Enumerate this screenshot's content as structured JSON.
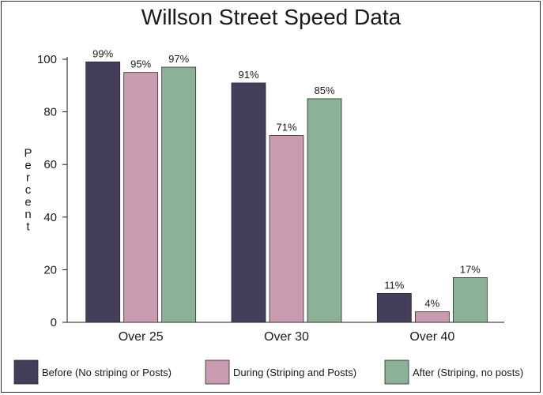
{
  "chart_data": {
    "type": "bar",
    "title": "Willson Street Speed Data",
    "ylabel": "Percent",
    "xlabel": "",
    "ylim": [
      0,
      100
    ],
    "yticks": [
      0,
      20,
      40,
      60,
      80,
      100
    ],
    "categories": [
      "Over 25",
      "Over 30",
      "Over 40"
    ],
    "series": [
      {
        "name": "Before (No striping or Posts)",
        "values": [
          99,
          91,
          11
        ],
        "labels": [
          "99%",
          "91%",
          "11%"
        ],
        "color": "#453e5a"
      },
      {
        "name": "During (Striping and Posts)",
        "values": [
          95,
          71,
          4
        ],
        "labels": [
          "95%",
          "71%",
          "4%"
        ],
        "color": "#c89bb0"
      },
      {
        "name": "After (Striping, no posts)",
        "values": [
          97,
          85,
          17
        ],
        "labels": [
          "97%",
          "85%",
          "17%"
        ],
        "color": "#8db197"
      }
    ],
    "grid": false,
    "legend_position": "bottom"
  }
}
